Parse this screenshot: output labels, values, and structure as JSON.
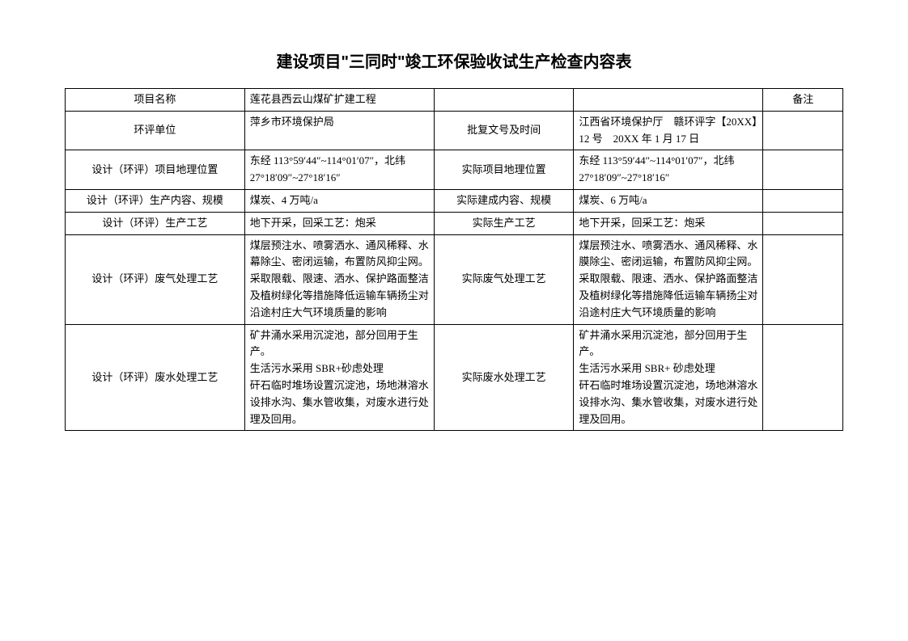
{
  "title": "建设项目\"三同时\"竣工环保验收试生产检查内容表",
  "remark_header": "备注",
  "rows": {
    "r1": {
      "label": "项目名称",
      "value": "莲花县西云山煤矿扩建工程"
    },
    "r2": {
      "label": "环评单位",
      "value": "萍乡市环境保护局",
      "mid_label": "批复文号及时间",
      "mid_value": "江西省环境保护厅　赣环评字【20XX】12 号　20XX 年 1 月 17 日"
    },
    "r3": {
      "label": "设计（环评）项目地理位置",
      "value": "东经 113°59′44″~114°01′07″，北纬 27°18′09″~27°18′16″",
      "mid_label": "实际项目地理位置",
      "mid_value": "东经 113°59′44″~114°01′07″，北纬 27°18′09″~27°18′16″"
    },
    "r4": {
      "label": "设计（环评）生产内容、规模",
      "value": "煤炭、4 万吨/a",
      "mid_label": "实际建成内容、规模",
      "mid_value": "煤炭、6 万吨/a"
    },
    "r5": {
      "label": "设计（环评）生产工艺",
      "value": "地下开采，回采工艺：炮采",
      "mid_label": "实际生产工艺",
      "mid_value": "地下开采，回采工艺：炮采"
    },
    "r6": {
      "label": "设计（环评）废气处理工艺",
      "value": "煤层预注水、喷雾洒水、通风稀释、水幕除尘、密闭运输，布置防风抑尘网。\n采取限载、限速、洒水、保护路面整洁及植树绿化等措施降低运输车辆扬尘对沿途村庄大气环境质量的影响",
      "mid_label": "实际废气处理工艺",
      "mid_value": "煤层预注水、喷雾洒水、通风稀释、水膜除尘、密闭运输，布置防风抑尘网。\n采取限载、限速、洒水、保护路面整洁及植树绿化等措施降低运输车辆扬尘对沿途村庄大气环境质量的影响"
    },
    "r7": {
      "label": "设计（环评）废水处理工艺",
      "value": "矿井涌水采用沉淀池，部分回用于生产。\n生活污水采用 SBR+砂虑处理\n矸石临时堆场设置沉淀池，场地淋溶水设排水沟、集水管收集，对废水进行处理及回用。",
      "mid_label": "实际废水处理工艺",
      "mid_value": "矿井涌水采用沉淀池，部分回用于生产。\n生活污水采用 SBR+ 砂虑处理\n矸石临时堆场设置沉淀池，场地淋溶水设排水沟、集水管收集，对废水进行处理及回用。"
    }
  }
}
